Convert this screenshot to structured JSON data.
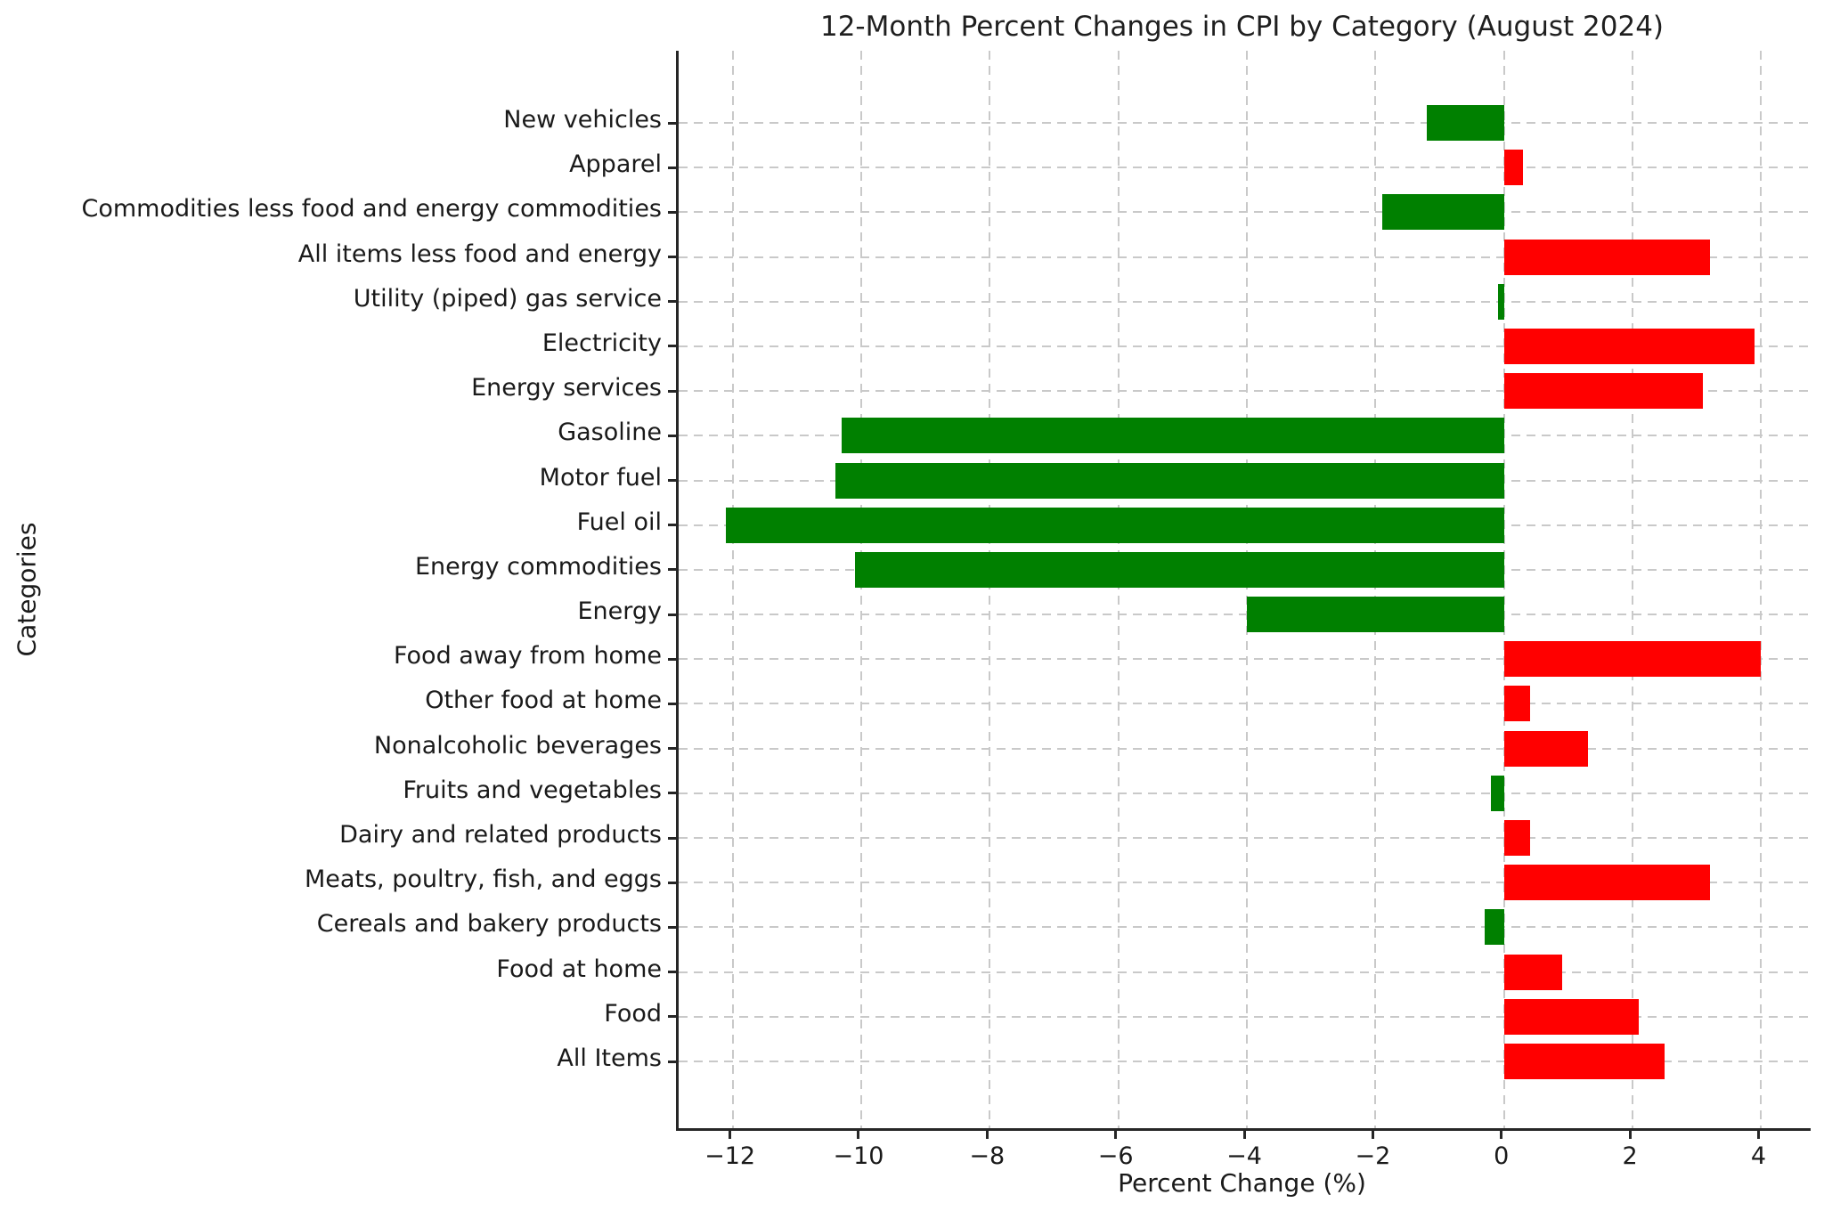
{
  "chart_data": {
    "type": "bar",
    "orientation": "horizontal",
    "title": "12-Month Percent Changes in CPI by Category (August 2024)",
    "xlabel": "Percent Change (%)",
    "ylabel": "Categories",
    "categories": [
      "New vehicles",
      "Apparel",
      "Commodities less food and energy commodities",
      "All items less food and energy",
      "Utility (piped) gas service",
      "Electricity",
      "Energy services",
      "Gasoline",
      "Motor fuel",
      "Fuel oil",
      "Energy commodities",
      "Energy",
      "Food away from home",
      "Other food at home",
      "Nonalcoholic beverages",
      "Fruits and vegetables",
      "Dairy and related products",
      "Meats, poultry, fish, and eggs",
      "Cereals and bakery products",
      "Food at home",
      "Food",
      "All Items"
    ],
    "values": [
      -1.2,
      0.3,
      -1.9,
      3.2,
      -0.1,
      3.9,
      3.1,
      -10.3,
      -10.4,
      -12.1,
      -10.1,
      -4.0,
      4.0,
      0.4,
      1.3,
      -0.2,
      0.4,
      3.2,
      -0.3,
      0.9,
      2.1,
      2.5
    ],
    "xlim": [
      -12.84,
      4.77
    ],
    "x_ticks": [
      -12,
      -10,
      -8,
      -6,
      -4,
      -2,
      0,
      2,
      4
    ],
    "x_tick_labels": [
      "−12",
      "−10",
      "−8",
      "−6",
      "−4",
      "−2",
      "0",
      "2",
      "4"
    ],
    "grid": true,
    "legend": "none",
    "positive_color": "#ff0000",
    "negative_color": "#008000"
  }
}
